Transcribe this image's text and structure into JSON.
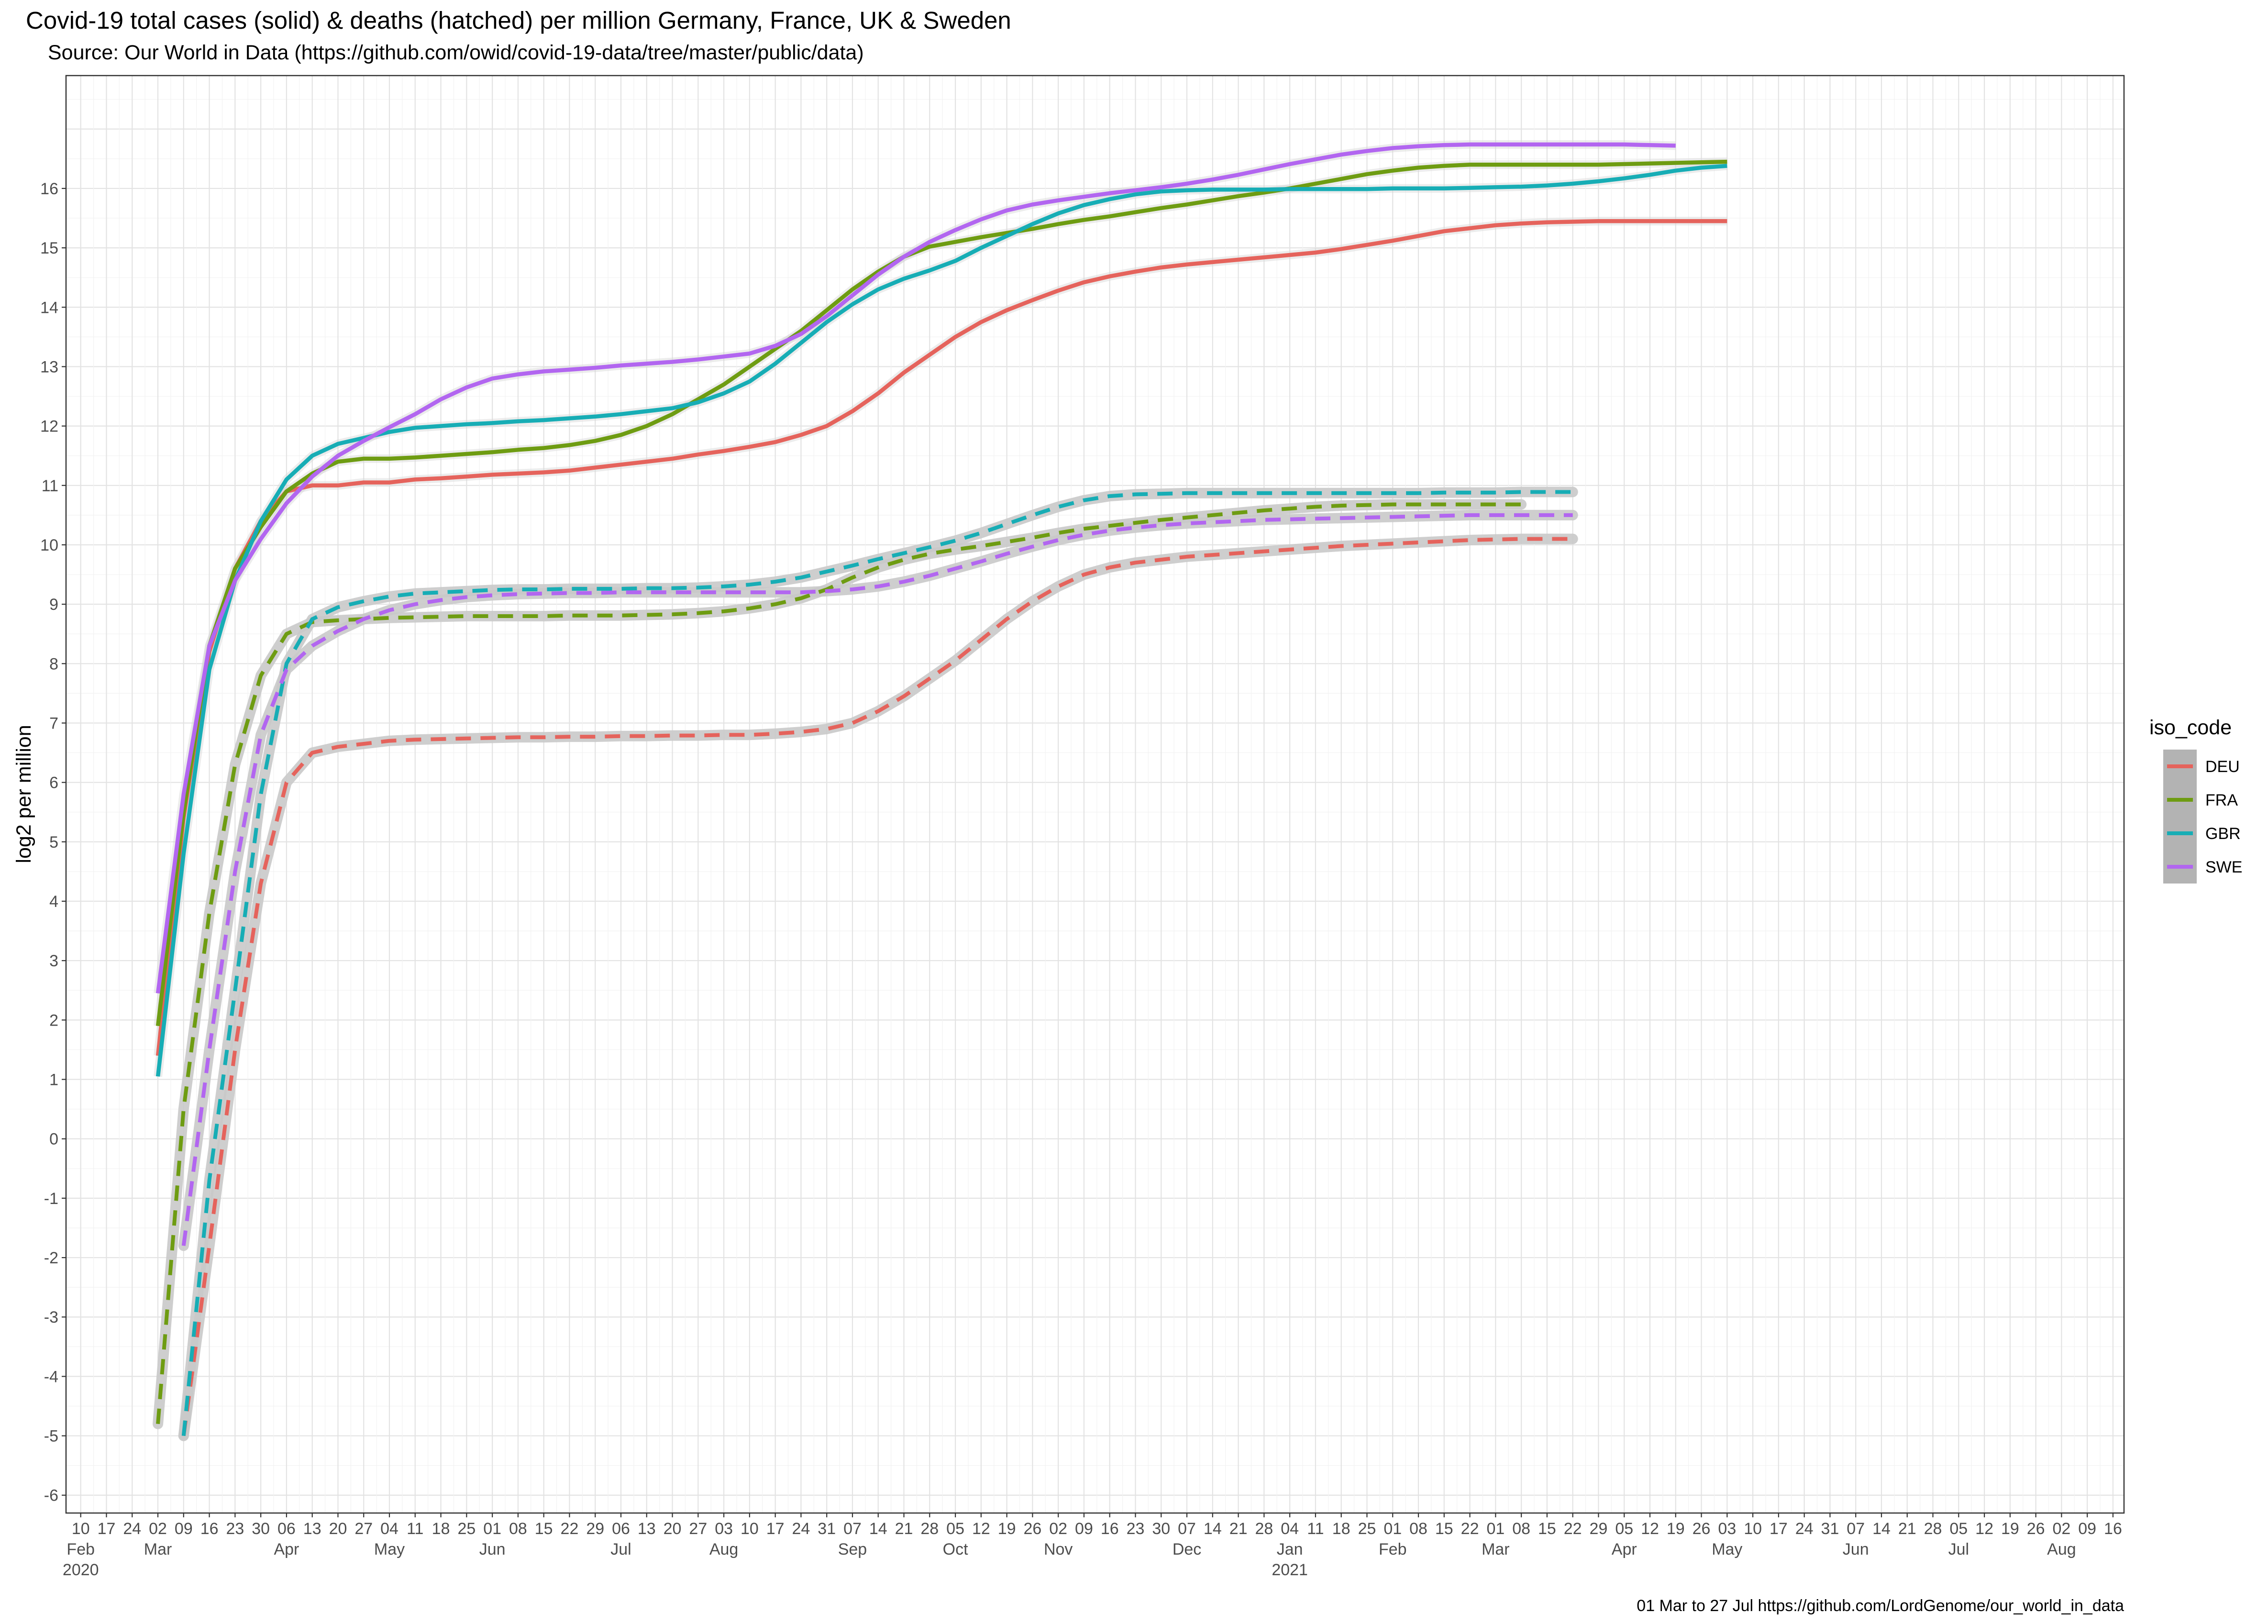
{
  "chart_data": {
    "type": "line",
    "title": "Covid-19 total cases (solid) & deaths (hatched) per million Germany, France, UK & Sweden",
    "subtitle": "Source: Our World in Data  (https://github.com/owid/covid-19-data/tree/master/public/data)",
    "caption": "01 Mar to 27 Jul https://github.com/LordGenome/our_world_in_data",
    "xlabel": "",
    "ylabel": "log2 per million",
    "x_start": "2020-03-02",
    "x_step_days": 7,
    "xlim": [
      "2020-02-06",
      "2021-08-19"
    ],
    "ylim": [
      -6.3,
      17.9
    ],
    "yticks": [
      -6,
      -5,
      -4,
      -3,
      -2,
      -1,
      0,
      1,
      2,
      3,
      4,
      5,
      6,
      7,
      8,
      9,
      10,
      11,
      12,
      13,
      14,
      15,
      16
    ],
    "x_day_labels": [
      "10",
      "17",
      "24",
      "02",
      "09",
      "16",
      "23",
      "30",
      "06",
      "13",
      "20",
      "27",
      "04",
      "11",
      "18",
      "25",
      "01",
      "08",
      "15",
      "22",
      "29",
      "06",
      "13",
      "20",
      "27",
      "03",
      "10",
      "17",
      "24",
      "31",
      "07",
      "14",
      "21",
      "28",
      "05",
      "12",
      "19",
      "26",
      "02",
      "09",
      "16",
      "23",
      "30",
      "07",
      "14",
      "21",
      "28",
      "04",
      "11",
      "18",
      "25",
      "01",
      "08",
      "15",
      "22",
      "01",
      "08",
      "15",
      "22",
      "29",
      "05",
      "12",
      "19",
      "26",
      "03",
      "10",
      "17",
      "24",
      "31",
      "07",
      "14",
      "21",
      "28",
      "05",
      "12",
      "19",
      "26",
      "02",
      "09",
      "16"
    ],
    "x_month_labels": [
      {
        "date": "2020-02-10",
        "label": "Feb"
      },
      {
        "date": "2020-03-02",
        "label": "Mar"
      },
      {
        "date": "2020-04-06",
        "label": "Apr"
      },
      {
        "date": "2020-05-04",
        "label": "May"
      },
      {
        "date": "2020-06-01",
        "label": "Jun"
      },
      {
        "date": "2020-07-06",
        "label": "Jul"
      },
      {
        "date": "2020-08-03",
        "label": "Aug"
      },
      {
        "date": "2020-09-07",
        "label": "Sep"
      },
      {
        "date": "2020-10-05",
        "label": "Oct"
      },
      {
        "date": "2020-11-02",
        "label": "Nov"
      },
      {
        "date": "2020-12-07",
        "label": "Dec"
      },
      {
        "date": "2021-01-04",
        "label": "Jan"
      },
      {
        "date": "2021-02-01",
        "label": "Feb"
      },
      {
        "date": "2021-03-01",
        "label": "Mar"
      },
      {
        "date": "2021-04-05",
        "label": "Apr"
      },
      {
        "date": "2021-05-03",
        "label": "May"
      },
      {
        "date": "2021-06-07",
        "label": "Jun"
      },
      {
        "date": "2021-07-05",
        "label": "Jul"
      },
      {
        "date": "2021-08-02",
        "label": "Aug"
      }
    ],
    "x_year_labels": [
      {
        "date": "2020-02-10",
        "label": "2020"
      },
      {
        "date": "2021-01-04",
        "label": "2021"
      }
    ],
    "grid": true,
    "legend": {
      "title": "iso_code",
      "placement": "right",
      "entries": [
        {
          "name": "DEU",
          "color": "#E5635C"
        },
        {
          "name": "FRA",
          "color": "#6E9C12"
        },
        {
          "name": "GBR",
          "color": "#17ADB5"
        },
        {
          "name": "SWE",
          "color": "#B266F0"
        }
      ]
    },
    "series": [
      {
        "name": "DEU",
        "metric": "cases",
        "color": "#E5635C",
        "start": "2020-03-02",
        "values": [
          1.4,
          5.4,
          8.2,
          9.6,
          10.4,
          10.9,
          11.0,
          11.0,
          11.05,
          11.05,
          11.1,
          11.12,
          11.15,
          11.18,
          11.2,
          11.22,
          11.25,
          11.3,
          11.35,
          11.4,
          11.45,
          11.52,
          11.58,
          11.65,
          11.73,
          11.85,
          12.0,
          12.25,
          12.55,
          12.9,
          13.2,
          13.5,
          13.75,
          13.95,
          14.12,
          14.28,
          14.42,
          14.52,
          14.6,
          14.67,
          14.72,
          14.76,
          14.8,
          14.84,
          14.88,
          14.92,
          14.98,
          15.05,
          15.12,
          15.2,
          15.28,
          15.33,
          15.38,
          15.41,
          15.43,
          15.44,
          15.45,
          15.45,
          15.45,
          15.45,
          15.45,
          15.45
        ]
      },
      {
        "name": "FRA",
        "metric": "cases",
        "color": "#6E9C12",
        "start": "2020-03-02",
        "values": [
          1.9,
          5.5,
          8.3,
          9.6,
          10.3,
          10.9,
          11.2,
          11.4,
          11.45,
          11.45,
          11.47,
          11.5,
          11.53,
          11.56,
          11.6,
          11.63,
          11.68,
          11.75,
          11.85,
          12.0,
          12.2,
          12.45,
          12.7,
          13.0,
          13.3,
          13.6,
          13.95,
          14.3,
          14.6,
          14.85,
          15.02,
          15.1,
          15.18,
          15.25,
          15.32,
          15.4,
          15.47,
          15.53,
          15.6,
          15.67,
          15.73,
          15.8,
          15.87,
          15.93,
          16.0,
          16.08,
          16.16,
          16.24,
          16.3,
          16.35,
          16.38,
          16.4,
          16.4,
          16.4,
          16.4,
          16.4,
          16.4,
          16.41,
          16.42,
          16.43,
          16.44,
          16.45
        ]
      },
      {
        "name": "GBR",
        "metric": "cases",
        "color": "#17ADB5",
        "start": "2020-03-02",
        "values": [
          1.05,
          4.8,
          7.9,
          9.4,
          10.4,
          11.1,
          11.5,
          11.7,
          11.8,
          11.9,
          11.97,
          12.0,
          12.03,
          12.05,
          12.08,
          12.1,
          12.13,
          12.16,
          12.2,
          12.25,
          12.3,
          12.4,
          12.55,
          12.75,
          13.05,
          13.4,
          13.75,
          14.05,
          14.3,
          14.48,
          14.62,
          14.78,
          15.0,
          15.2,
          15.4,
          15.58,
          15.72,
          15.82,
          15.9,
          15.95,
          15.97,
          15.98,
          15.98,
          15.98,
          15.99,
          15.99,
          15.99,
          15.99,
          16.0,
          16.0,
          16.0,
          16.01,
          16.02,
          16.03,
          16.05,
          16.08,
          16.12,
          16.17,
          16.23,
          16.3,
          16.35,
          16.38
        ]
      },
      {
        "name": "SWE",
        "metric": "cases",
        "color": "#B266F0",
        "start": "2020-03-02",
        "values": [
          2.45,
          5.8,
          8.3,
          9.4,
          10.1,
          10.7,
          11.15,
          11.5,
          11.75,
          11.98,
          12.2,
          12.45,
          12.65,
          12.8,
          12.87,
          12.92,
          12.95,
          12.98,
          13.02,
          13.05,
          13.08,
          13.12,
          13.17,
          13.22,
          13.35,
          13.55,
          13.85,
          14.2,
          14.55,
          14.85,
          15.1,
          15.3,
          15.48,
          15.63,
          15.73,
          15.8,
          15.86,
          15.92,
          15.97,
          16.02,
          16.08,
          16.15,
          16.23,
          16.32,
          16.41,
          16.49,
          16.57,
          16.63,
          16.68,
          16.71,
          16.73,
          16.74,
          16.74,
          16.74,
          16.74,
          16.74,
          16.74,
          16.74,
          16.73,
          16.72
        ]
      },
      {
        "name": "DEU",
        "metric": "deaths",
        "color": "#E5635C",
        "start": "2020-03-09",
        "values": [
          -5.0,
          -1.8,
          1.5,
          4.3,
          6.0,
          6.5,
          6.6,
          6.65,
          6.7,
          6.72,
          6.73,
          6.74,
          6.75,
          6.76,
          6.76,
          6.77,
          6.77,
          6.78,
          6.78,
          6.79,
          6.79,
          6.8,
          6.8,
          6.82,
          6.85,
          6.9,
          7.0,
          7.2,
          7.45,
          7.75,
          8.05,
          8.4,
          8.75,
          9.05,
          9.3,
          9.5,
          9.62,
          9.7,
          9.75,
          9.8,
          9.83,
          9.86,
          9.89,
          9.92,
          9.95,
          9.98,
          10.0,
          10.02,
          10.04,
          10.06,
          10.08,
          10.09,
          10.1,
          10.1,
          10.1
        ]
      },
      {
        "name": "FRA",
        "metric": "deaths",
        "color": "#6E9C12",
        "start": "2020-03-02",
        "values": [
          -4.8,
          0.5,
          3.8,
          6.3,
          7.8,
          8.5,
          8.7,
          8.73,
          8.75,
          8.77,
          8.78,
          8.79,
          8.8,
          8.8,
          8.8,
          8.8,
          8.81,
          8.81,
          8.81,
          8.82,
          8.83,
          8.85,
          8.88,
          8.93,
          9.0,
          9.1,
          9.25,
          9.45,
          9.62,
          9.75,
          9.85,
          9.92,
          9.98,
          10.05,
          10.12,
          10.2,
          10.27,
          10.32,
          10.37,
          10.42,
          10.46,
          10.5,
          10.54,
          10.58,
          10.61,
          10.64,
          10.66,
          10.67,
          10.68,
          10.68,
          10.68,
          10.68,
          10.68,
          10.68
        ]
      },
      {
        "name": "GBR",
        "metric": "deaths",
        "color": "#17ADB5",
        "start": "2020-03-09",
        "values": [
          -5.0,
          -0.7,
          2.5,
          5.8,
          8.0,
          8.75,
          8.95,
          9.05,
          9.13,
          9.18,
          9.2,
          9.22,
          9.24,
          9.25,
          9.25,
          9.26,
          9.26,
          9.26,
          9.27,
          9.27,
          9.28,
          9.3,
          9.33,
          9.38,
          9.45,
          9.55,
          9.65,
          9.76,
          9.86,
          9.96,
          10.07,
          10.2,
          10.35,
          10.5,
          10.64,
          10.75,
          10.82,
          10.85,
          10.86,
          10.87,
          10.87,
          10.87,
          10.87,
          10.87,
          10.87,
          10.87,
          10.87,
          10.87,
          10.87,
          10.88,
          10.88,
          10.88,
          10.89,
          10.89,
          10.89
        ]
      },
      {
        "name": "SWE",
        "metric": "deaths",
        "color": "#B266F0",
        "start": "2020-03-09",
        "values": [
          -1.8,
          1.5,
          4.5,
          6.8,
          7.9,
          8.3,
          8.55,
          8.75,
          8.9,
          9.0,
          9.07,
          9.12,
          9.15,
          9.17,
          9.18,
          9.19,
          9.19,
          9.2,
          9.2,
          9.2,
          9.2,
          9.2,
          9.2,
          9.2,
          9.2,
          9.22,
          9.25,
          9.3,
          9.38,
          9.48,
          9.6,
          9.72,
          9.85,
          9.97,
          10.08,
          10.17,
          10.24,
          10.29,
          10.33,
          10.36,
          10.38,
          10.4,
          10.42,
          10.43,
          10.44,
          10.45,
          10.46,
          10.47,
          10.48,
          10.49,
          10.5,
          10.5,
          10.5,
          10.5,
          10.5
        ]
      }
    ]
  }
}
